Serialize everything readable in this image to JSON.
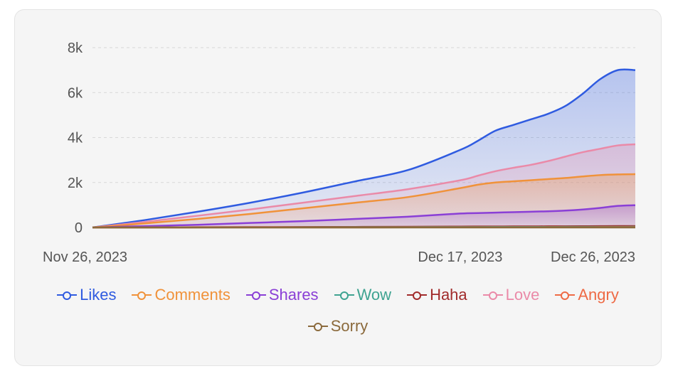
{
  "chart_data": {
    "type": "area",
    "x_labels": [
      "Nov 26, 2023",
      "Dec 17, 2023",
      "Dec 26, 2023"
    ],
    "x_label_days": [
      0,
      21,
      30
    ],
    "x_range_days": [
      0,
      31
    ],
    "ylim": [
      0,
      8000
    ],
    "yticks": [
      0,
      2000,
      4000,
      6000,
      8000
    ],
    "ytick_labels": [
      "0",
      "2k",
      "4k",
      "6k",
      "8k"
    ],
    "grid": true,
    "legend_position": "bottom",
    "x": [
      0,
      3,
      6,
      9,
      12,
      15,
      18,
      21,
      22,
      23,
      24,
      25,
      26,
      27,
      28,
      29,
      30,
      31
    ],
    "series": [
      {
        "name": "Likes",
        "color": "#2f5be0",
        "fill": true,
        "values": [
          0,
          330,
          700,
          1100,
          1550,
          2050,
          2550,
          3450,
          3850,
          4300,
          4550,
          4800,
          5050,
          5400,
          5950,
          6600,
          7000,
          7000
        ]
      },
      {
        "name": "Comments",
        "color": "#f0923a",
        "fill": true,
        "values": [
          0,
          180,
          380,
          600,
          850,
          1100,
          1350,
          1750,
          1900,
          2000,
          2050,
          2100,
          2150,
          2200,
          2270,
          2330,
          2360,
          2370
        ]
      },
      {
        "name": "Shares",
        "color": "#8a3fd6",
        "fill": true,
        "values": [
          0,
          60,
          120,
          200,
          280,
          380,
          480,
          620,
          640,
          660,
          680,
          700,
          720,
          750,
          800,
          870,
          960,
          990
        ]
      },
      {
        "name": "Wow",
        "color": "#3fa391",
        "fill": false,
        "values": [
          0,
          2,
          5,
          8,
          11,
          14,
          17,
          20,
          21,
          22,
          23,
          24,
          25,
          26,
          27,
          28,
          29,
          30
        ]
      },
      {
        "name": "Haha",
        "color": "#a12b2b",
        "fill": false,
        "values": [
          0,
          5,
          10,
          15,
          20,
          25,
          32,
          40,
          42,
          44,
          46,
          48,
          50,
          52,
          55,
          58,
          62,
          65
        ]
      },
      {
        "name": "Love",
        "color": "#ea8aa8",
        "fill": true,
        "values": [
          0,
          250,
          520,
          800,
          1100,
          1400,
          1700,
          2100,
          2300,
          2500,
          2650,
          2780,
          2950,
          3150,
          3350,
          3500,
          3650,
          3700
        ]
      },
      {
        "name": "Angry",
        "color": "#ee6a45",
        "fill": false,
        "values": [
          0,
          1,
          2,
          3,
          4,
          5,
          6,
          7,
          7,
          8,
          8,
          8,
          9,
          9,
          9,
          10,
          10,
          10
        ]
      },
      {
        "name": "Sorry",
        "color": "#8b6a3c",
        "fill": false,
        "values": [
          0,
          1,
          2,
          3,
          4,
          5,
          6,
          8,
          8,
          9,
          9,
          9,
          10,
          10,
          10,
          11,
          11,
          11
        ]
      }
    ]
  },
  "legend": {
    "row1": [
      {
        "label": "Likes",
        "color": "#2f5be0"
      },
      {
        "label": "Comments",
        "color": "#f0923a"
      },
      {
        "label": "Shares",
        "color": "#8a3fd6"
      },
      {
        "label": "Wow",
        "color": "#3fa391"
      },
      {
        "label": "Haha",
        "color": "#a12b2b"
      },
      {
        "label": "Love",
        "color": "#ea8aa8"
      },
      {
        "label": "Angry",
        "color": "#ee6a45"
      }
    ],
    "row2": [
      {
        "label": "Sorry",
        "color": "#8b6a3c"
      }
    ]
  }
}
